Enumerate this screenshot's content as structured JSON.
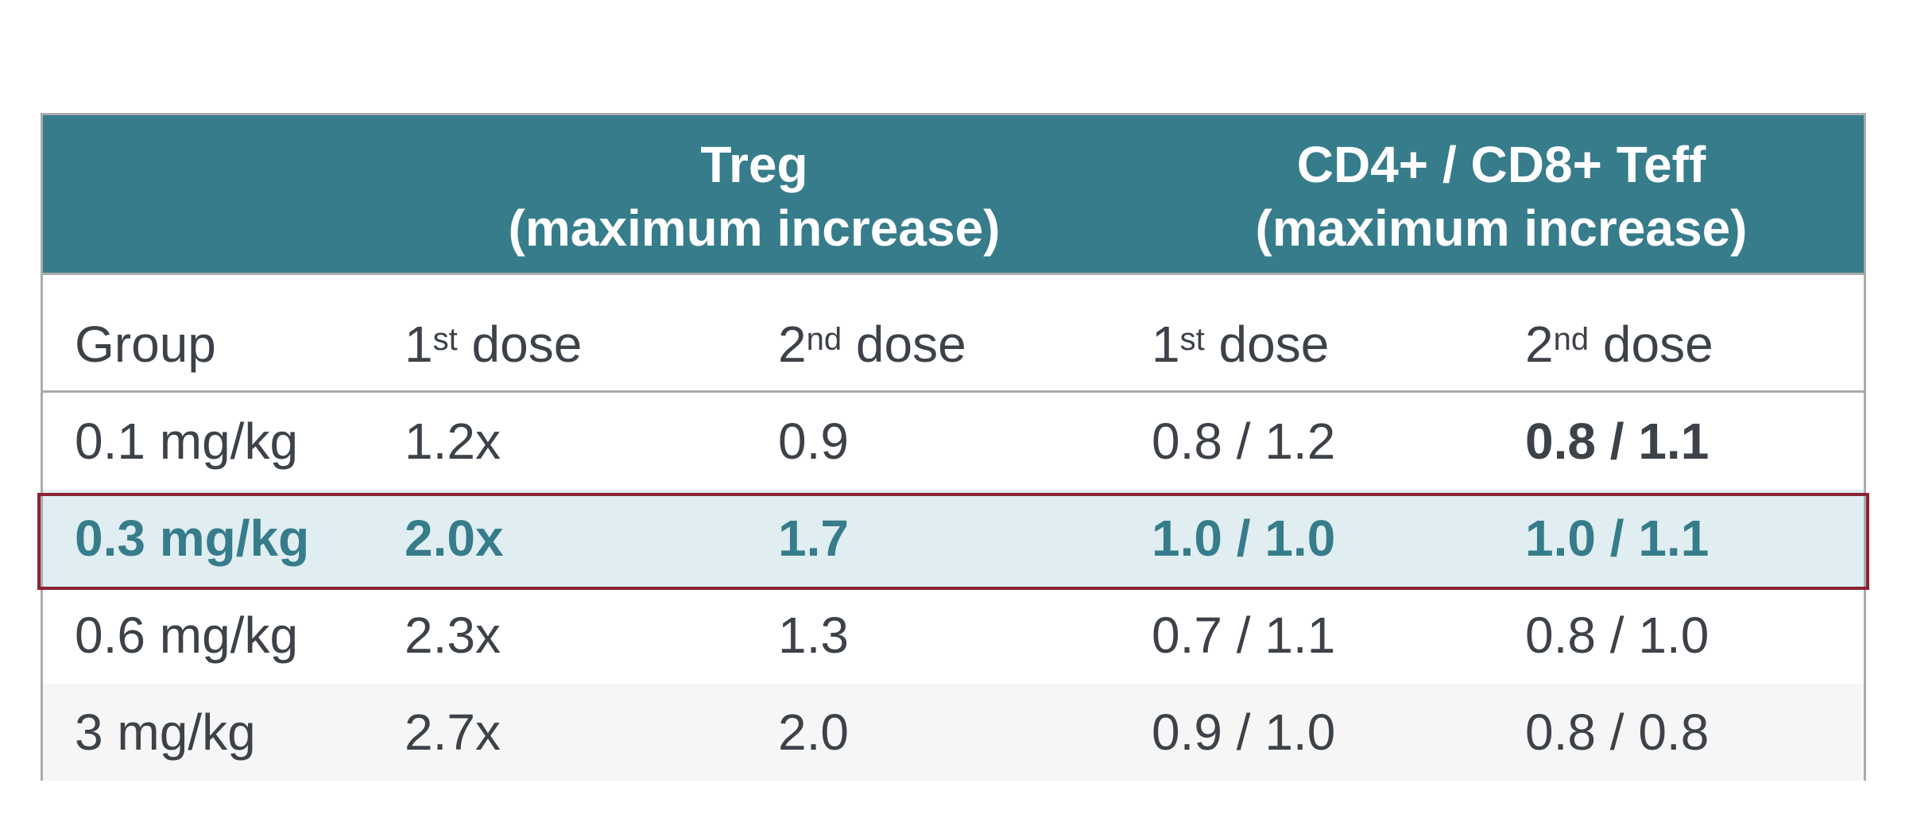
{
  "header": {
    "group_1": {
      "line1": "Treg",
      "line2": "(maximum increase)"
    },
    "group_2": {
      "line1": "CD4+ / CD8+ Teff",
      "line2": "(maximum increase)"
    }
  },
  "columns": {
    "group": "Group",
    "dose1_num": "1",
    "dose1_sup": "st",
    "dose1_word": " dose",
    "dose2_num": "2",
    "dose2_sup": "nd",
    "dose2_word": " dose"
  },
  "rows": [
    {
      "group": "0.1 mg/kg",
      "treg_1": "1.2x",
      "treg_2": "0.9",
      "teff_1": "0.8 / 1.2",
      "teff_2": "0.8 / 1.1",
      "highlighted": false
    },
    {
      "group": "0.3 mg/kg",
      "treg_1": "2.0x",
      "treg_2": "1.7",
      "teff_1": "1.0 / 1.0",
      "teff_2": "1.0 / 1.1",
      "highlighted": true
    },
    {
      "group": "0.6 mg/kg",
      "treg_1": "2.3x",
      "treg_2": "1.3",
      "teff_1": "0.7 / 1.1",
      "teff_2": "0.8 / 1.0",
      "highlighted": false
    },
    {
      "group": "3 mg/kg",
      "treg_1": "2.7x",
      "treg_2": "2.0",
      "teff_1": "0.9 / 1.0",
      "teff_2": "0.8 / 0.8",
      "highlighted": false
    }
  ],
  "colors": {
    "header_bg": "#377c8b",
    "highlight_row_bg": "#e0eef1",
    "highlight_text": "#377c8b",
    "highlight_border": "#8c2332",
    "body_text": "#3c4248"
  }
}
